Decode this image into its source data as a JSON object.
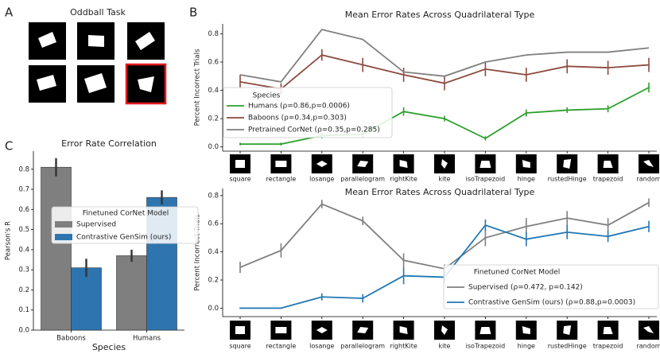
{
  "panel_labels": [
    "A",
    "B",
    "C"
  ],
  "oddball_title": "Oddball Task",
  "chart_data": [
    {
      "type": "line",
      "title": "Mean Error Rates Across Quadrilateral Type",
      "y_label": "Percent Incorrect Trials",
      "categories": [
        "square",
        "rectangle",
        "losange",
        "parallelogram",
        "rightKite",
        "kite",
        "isoTrapezoid",
        "hinge",
        "rustedHinge",
        "trapezoid",
        "random"
      ],
      "legend_title": "Species",
      "series": [
        {
          "name": "Humans (ρ=0.86,p=0.0006)",
          "color": "#2ca02c",
          "values": [
            0.02,
            0.02,
            0.08,
            0.09,
            0.25,
            0.2,
            0.06,
            0.24,
            0.26,
            0.27,
            0.42
          ],
          "errors": [
            0.01,
            0.01,
            0.02,
            0.02,
            0.03,
            0.02,
            0.015,
            0.025,
            0.02,
            0.025,
            0.035
          ]
        },
        {
          "name": "Baboons (ρ=0.34,p=0.303)",
          "color": "#8c4a3e",
          "values": [
            0.46,
            0.41,
            0.65,
            0.58,
            0.51,
            0.45,
            0.55,
            0.51,
            0.57,
            0.56,
            0.58
          ],
          "errors": [
            0.05,
            0.04,
            0.04,
            0.05,
            0.05,
            0.05,
            0.05,
            0.05,
            0.05,
            0.05,
            0.05
          ]
        },
        {
          "name": "Pretrained CorNet (ρ=0.35,p=0.285)",
          "color": "#7f7f7f",
          "values": [
            0.51,
            0.46,
            0.83,
            0.76,
            0.53,
            0.5,
            0.6,
            0.65,
            0.67,
            0.67,
            0.7
          ]
        }
      ],
      "ylim": [
        -0.03,
        0.87
      ],
      "yticks": [
        {
          "value": 0,
          "label": "0.0"
        },
        {
          "value": 0.2,
          "label": "0.2"
        },
        {
          "value": 0.4,
          "label": "0.4"
        },
        {
          "value": 0.6,
          "label": "0.6"
        },
        {
          "value": 0.8,
          "label": "0.8"
        }
      ]
    },
    {
      "type": "line",
      "title": "Mean Error Rates Across Quadrilateral Type",
      "y_label": "Percent Incorrect Trials",
      "categories": [
        "square",
        "rectangle",
        "losange",
        "parallelogram",
        "rightKite",
        "kite",
        "isoTrapezoid",
        "hinge",
        "rustedHinge",
        "trapezoid",
        "random"
      ],
      "legend_title": "Finetuned CorNet Model",
      "series": [
        {
          "name": "Supervised (ρ=0.472, p=0.142)",
          "color": "#7f7f7f",
          "values": [
            0.29,
            0.41,
            0.74,
            0.62,
            0.34,
            0.28,
            0.5,
            0.58,
            0.64,
            0.59,
            0.75
          ],
          "errors": [
            0.04,
            0.05,
            0.03,
            0.03,
            0.05,
            0.03,
            0.06,
            0.06,
            0.05,
            0.05,
            0.03
          ]
        },
        {
          "name": "Contrastive GenSim (ours) (ρ=0.88,p=0.0003)",
          "color": "#1f77b4",
          "values": [
            0.0,
            0.0,
            0.08,
            0.07,
            0.23,
            0.22,
            0.59,
            0.49,
            0.54,
            0.51,
            0.58
          ],
          "errors": [
            0.005,
            0.005,
            0.025,
            0.03,
            0.06,
            0.04,
            0.04,
            0.05,
            0.05,
            0.04,
            0.04
          ]
        }
      ],
      "ylim": [
        -0.06,
        0.85
      ],
      "yticks": [
        {
          "value": 0,
          "label": "0.0"
        },
        {
          "value": 0.2,
          "label": "0.2"
        },
        {
          "value": 0.4,
          "label": "0.4"
        },
        {
          "value": 0.6,
          "label": "0.6"
        },
        {
          "value": 0.8,
          "label": "0.8"
        }
      ]
    },
    {
      "type": "bar",
      "title": "Error Rate Correlation",
      "y_label": "Pearson's R",
      "x_label": "Species",
      "categories": [
        "Baboons",
        "Humans"
      ],
      "legend_title": "Finetuned CorNet Model",
      "series": [
        {
          "name": "Supervised",
          "color": "#7f7f7f",
          "values": [
            0.81,
            0.37
          ],
          "errors": [
            0.045,
            0.03
          ]
        },
        {
          "name": "Contrastive GenSim (ours)",
          "color": "#2e75b0",
          "values": [
            0.31,
            0.66
          ],
          "errors": [
            0.045,
            0.035
          ]
        }
      ],
      "ylim": [
        0,
        0.89
      ],
      "yticks": [
        {
          "value": 0,
          "label": "0.0"
        },
        {
          "value": 0.1,
          "label": "0.1"
        },
        {
          "value": 0.2,
          "label": "0.2"
        },
        {
          "value": 0.3,
          "label": "0.3"
        },
        {
          "value": 0.4,
          "label": "0.4"
        },
        {
          "value": 0.5,
          "label": "0.5"
        },
        {
          "value": 0.6,
          "label": "0.6"
        },
        {
          "value": 0.7,
          "label": "0.7"
        },
        {
          "value": 0.8,
          "label": "0.8"
        }
      ]
    }
  ]
}
